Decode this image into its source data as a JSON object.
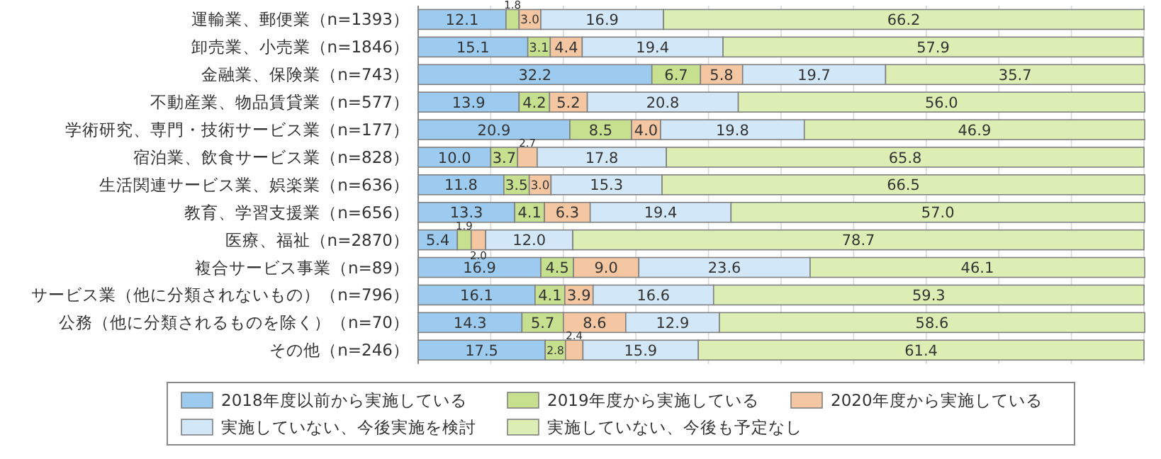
{
  "chart_data": {
    "type": "bar",
    "orientation": "horizontal",
    "stacked": true,
    "legend": "bottom",
    "grid": "x",
    "tick_labels": "y",
    "xlim": [
      0,
      100
    ],
    "xticks": [
      {
        "value": 0,
        "label": null
      },
      {
        "value": 10,
        "label": null
      },
      {
        "value": 20,
        "label": null
      },
      {
        "value": 30,
        "label": null
      },
      {
        "value": 40,
        "label": null
      },
      {
        "value": 50,
        "label": null
      },
      {
        "value": 60,
        "label": null
      },
      {
        "value": 70,
        "label": null
      },
      {
        "value": 80,
        "label": null
      },
      {
        "value": 90,
        "label": null
      },
      {
        "value": 100,
        "label": null
      }
    ],
    "categories": [
      "運輸業、郵便業（n=1393）",
      "卸売業、小売業（n=1846）",
      "金融業、保険業（n=743）",
      "不動産業、物品賃貸業（n=577）",
      "学術研究、専門・技術サービス業（n=177）",
      "宿泊業、飲食サービス業（n=828）",
      "生活関連サービス業、娯楽業（n=636）",
      "教育、学習支援業（n=656）",
      "医療、福祉（n=2870）",
      "複合サービス事業（n=89）",
      "サービス業（他に分類されないもの）（n=796）",
      "公務（他に分類されるものを除く）（n=70）",
      "その他（n=246）"
    ],
    "series": [
      {
        "name": "2018年度以前から実施している",
        "color": "#9dcbef",
        "values": [
          12.1,
          15.1,
          32.2,
          13.9,
          20.9,
          10.0,
          11.8,
          13.3,
          5.4,
          16.9,
          16.1,
          14.3,
          17.5
        ],
        "value_labels": [
          "12.1",
          "15.1",
          "32.2",
          "13.9",
          "20.9",
          "10.0",
          "11.8",
          "13.3",
          "5.4",
          "16.9",
          "16.1",
          "14.3",
          "17.5"
        ]
      },
      {
        "name": "2019年度から実施している",
        "color": "#c6e08f",
        "values": [
          1.8,
          3.1,
          6.7,
          4.2,
          8.5,
          3.7,
          3.5,
          4.1,
          1.9,
          4.5,
          4.1,
          5.7,
          2.8
        ],
        "value_labels": [
          "1.8",
          "3.1",
          "6.7",
          "4.2",
          "8.5",
          "3.7",
          "3.5",
          "4.1",
          "1.9",
          "4.5",
          "4.1",
          "5.7",
          "2.8"
        ]
      },
      {
        "name": "2020年度から実施している",
        "color": "#f4c7a2",
        "values": [
          3.0,
          4.4,
          5.8,
          5.2,
          4.0,
          2.7,
          3.0,
          6.3,
          2.0,
          9.0,
          3.9,
          8.6,
          2.4
        ],
        "value_labels": [
          "3.0",
          "4.4",
          "5.8",
          "5.2",
          "4.0",
          "2.7",
          "3.0",
          "6.3",
          "2.0",
          "9.0",
          "3.9",
          "8.6",
          "2.4"
        ]
      },
      {
        "name": "実施していない、今後実施を検討",
        "color": "#d2e7f8",
        "values": [
          16.9,
          19.4,
          19.7,
          20.8,
          19.8,
          17.8,
          15.3,
          19.4,
          12.0,
          23.6,
          16.6,
          12.9,
          15.9
        ],
        "value_labels": [
          "16.9",
          "19.4",
          "19.7",
          "20.8",
          "19.8",
          "17.8",
          "15.3",
          "19.4",
          "12.0",
          "23.6",
          "16.6",
          "12.9",
          "15.9"
        ]
      },
      {
        "name": "実施していない、今後も予定なし",
        "color": "#ddeeb5",
        "values": [
          66.2,
          57.9,
          35.7,
          56.0,
          46.9,
          65.8,
          66.5,
          57.0,
          78.7,
          46.1,
          59.3,
          58.6,
          61.4
        ],
        "value_labels": [
          "66.2",
          "57.9",
          "35.7",
          "56.0",
          "46.9",
          "65.8",
          "66.5",
          "57.0",
          "78.7",
          "46.1",
          "59.3",
          "58.6",
          "61.4"
        ]
      }
    ]
  }
}
